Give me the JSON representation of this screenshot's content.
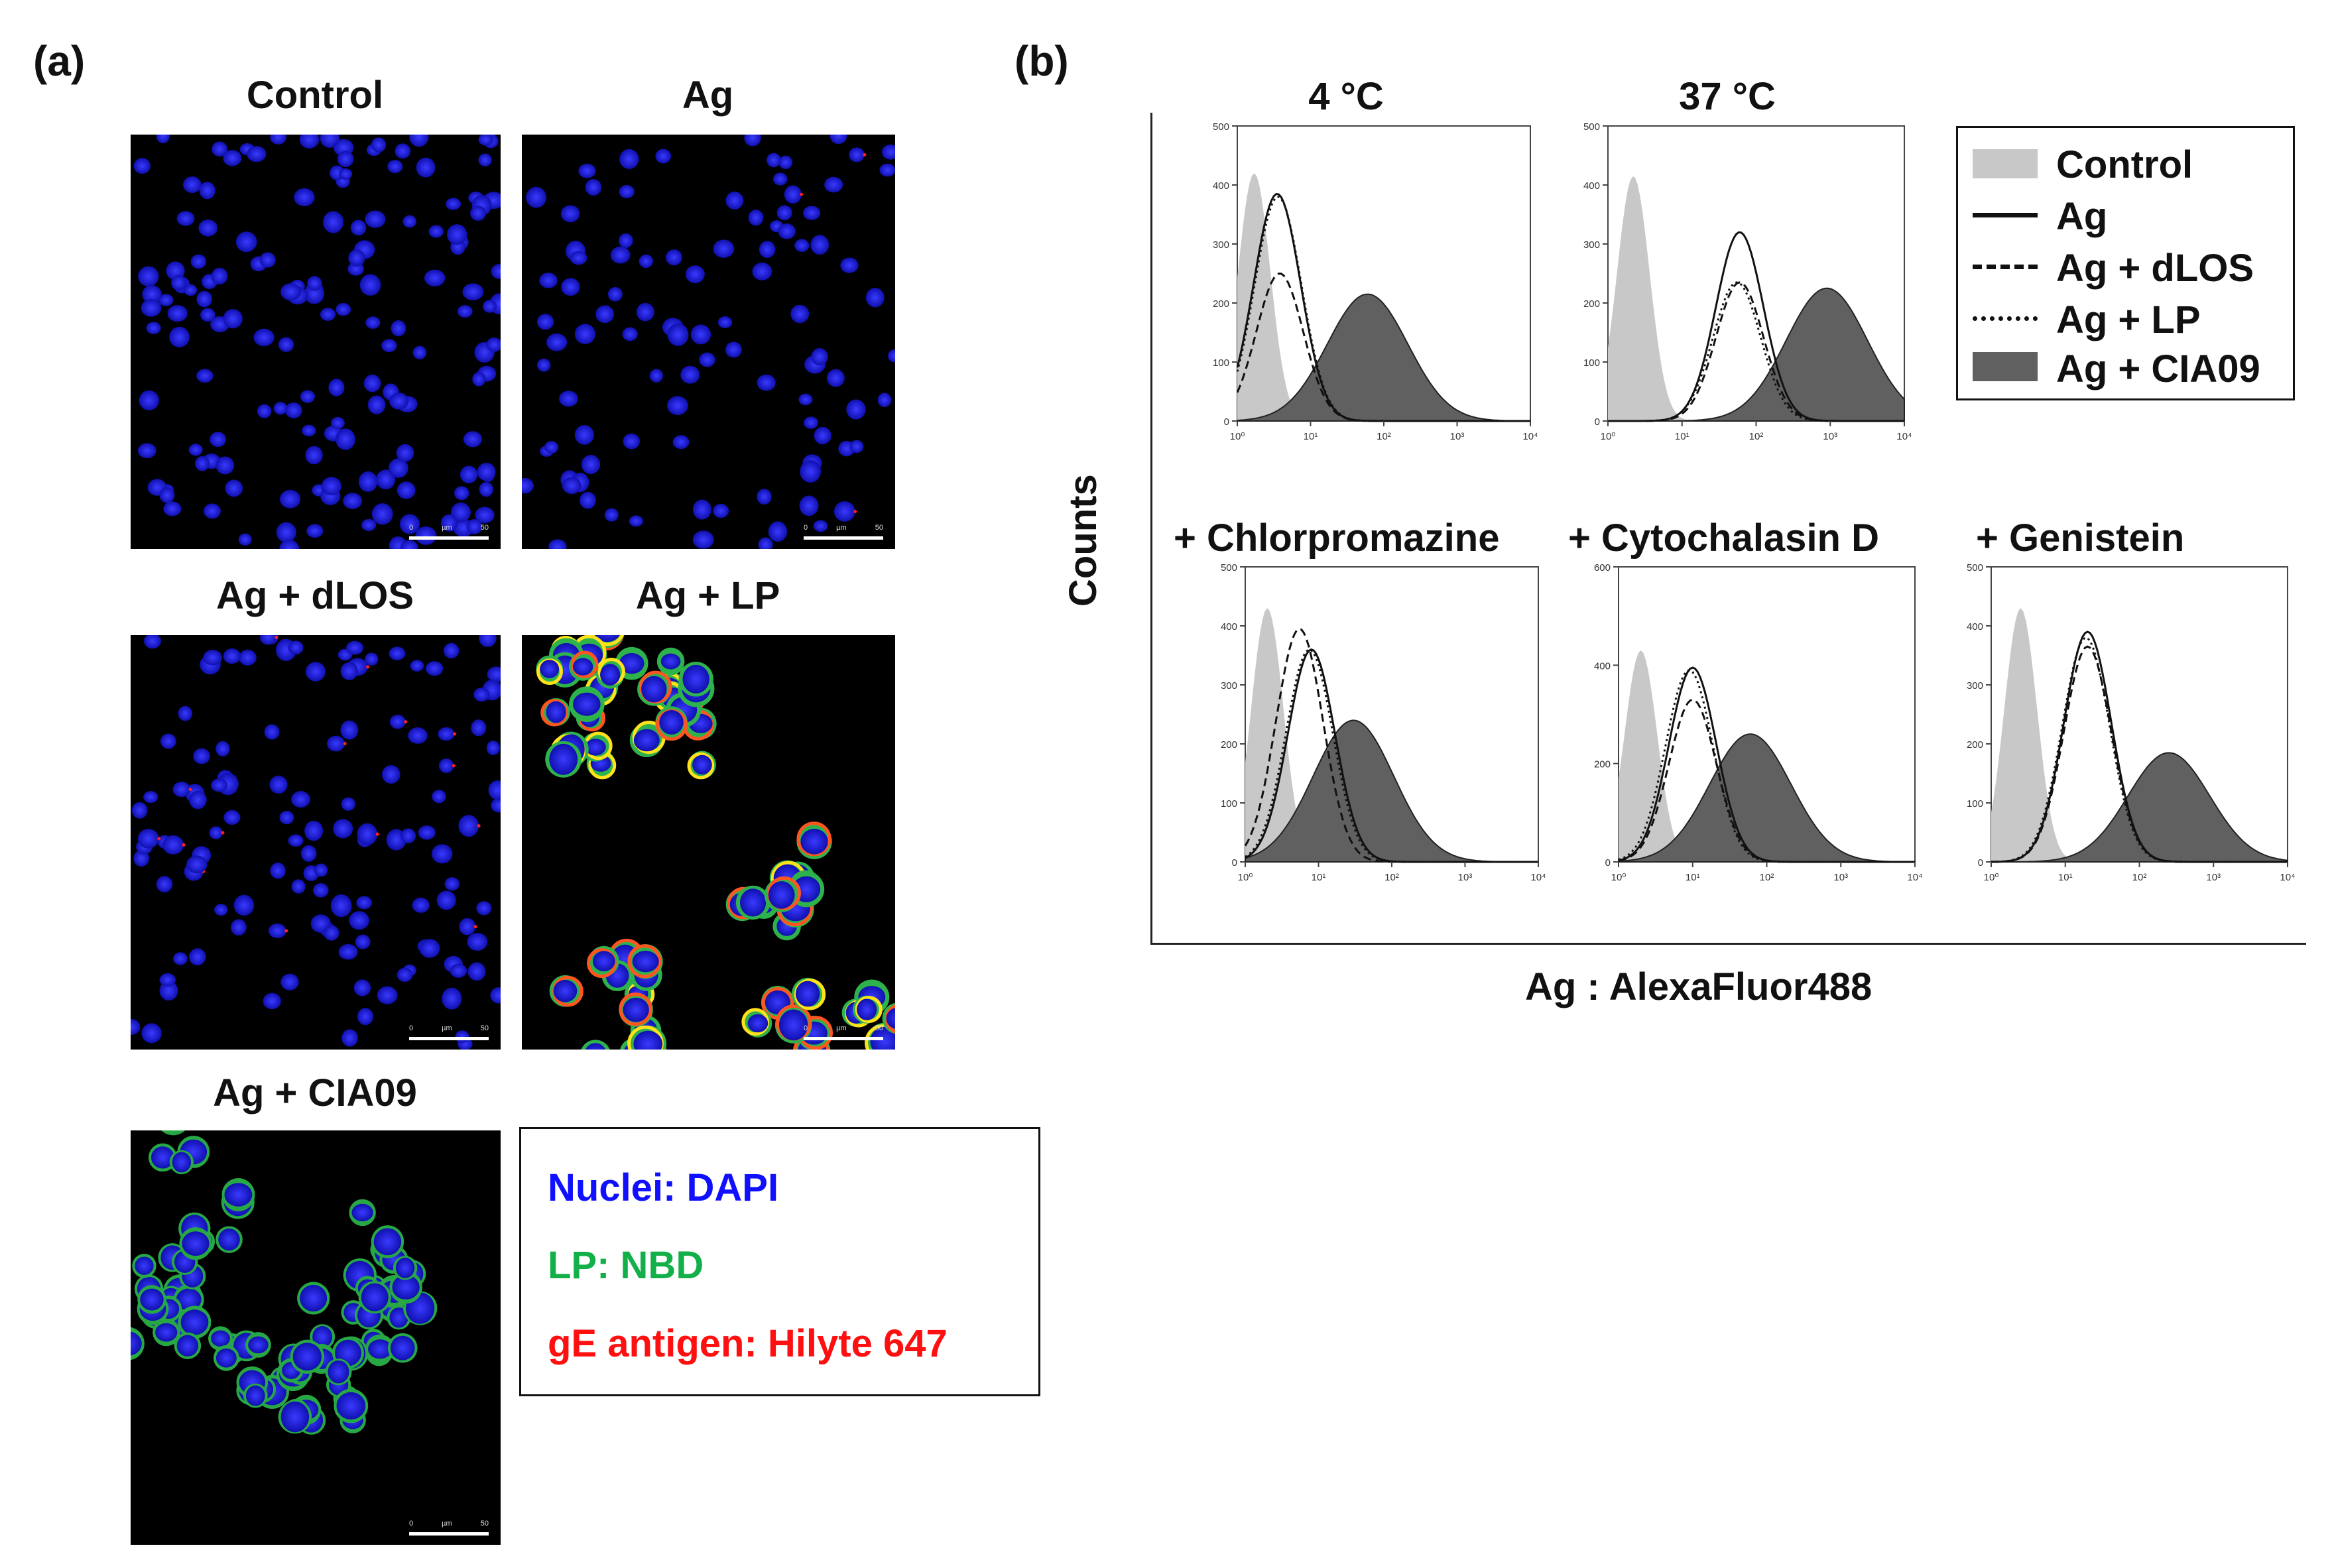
{
  "panel_a": {
    "label": "(a)",
    "panels": [
      {
        "title": "Control",
        "type": "control",
        "scale": [
          "0",
          "µm",
          "50"
        ]
      },
      {
        "title": "Ag",
        "type": "ag",
        "scale": [
          "0",
          "µm",
          "50"
        ]
      },
      {
        "title": "Ag + dLOS",
        "type": "dlos",
        "scale": [
          "0",
          "µm",
          "50"
        ]
      },
      {
        "title": "Ag + LP",
        "type": "lp",
        "scale": [
          "0",
          "µm",
          "50"
        ]
      },
      {
        "title": "Ag + CIA09",
        "type": "cia09",
        "scale": [
          "0",
          "µm",
          "50"
        ]
      }
    ],
    "legend": [
      {
        "text": "Nuclei: DAPI",
        "color": "#1010ff"
      },
      {
        "text": "LP: NBD",
        "color": "#13b04a"
      },
      {
        "text": "gE antigen: Hilyte 647",
        "color": "#ff1010"
      }
    ]
  },
  "panel_b": {
    "label": "(b)",
    "ylabel": "Counts",
    "xlabel": "Ag : AlexaFluor488",
    "legend": [
      {
        "label": "Control",
        "style": "fill-light"
      },
      {
        "label": "Ag",
        "style": "solid"
      },
      {
        "label": "Ag + dLOS",
        "style": "dashed"
      },
      {
        "label": "Ag + LP",
        "style": "dotted"
      },
      {
        "label": "Ag + CIA09",
        "style": "fill-dark"
      }
    ],
    "colors": {
      "control_fill": "#c8c8c8",
      "cia09_fill": "#606060",
      "line": "#111111"
    }
  },
  "chart_data": [
    {
      "type": "area",
      "title": "4 °C",
      "x_scale": "log",
      "xlim": [
        1,
        10000
      ],
      "xticks": [
        "10⁰",
        "10¹",
        "10²",
        "10³",
        "10⁴"
      ],
      "ylim": [
        0,
        500
      ],
      "yticks": [
        0,
        100,
        200,
        300,
        400,
        500
      ],
      "series": [
        {
          "name": "Control",
          "peak_x": 1.7,
          "peak_y": 420
        },
        {
          "name": "Ag",
          "peak_x": 3.5,
          "peak_y": 385
        },
        {
          "name": "Ag + dLOS",
          "peak_x": 3.8,
          "peak_y": 250
        },
        {
          "name": "Ag + LP",
          "peak_x": 3.6,
          "peak_y": 380
        },
        {
          "name": "Ag + CIA09",
          "peak_x": 60,
          "peak_y": 215
        }
      ]
    },
    {
      "type": "area",
      "title": "37 °C",
      "x_scale": "log",
      "xlim": [
        1,
        10000
      ],
      "xticks": [
        "10⁰",
        "10¹",
        "10²",
        "10³",
        "10⁴"
      ],
      "ylim": [
        0,
        500
      ],
      "yticks": [
        0,
        100,
        200,
        300,
        400,
        500
      ],
      "series": [
        {
          "name": "Control",
          "peak_x": 2.2,
          "peak_y": 415
        },
        {
          "name": "Ag",
          "peak_x": 60,
          "peak_y": 320
        },
        {
          "name": "Ag + dLOS",
          "peak_x": 60,
          "peak_y": 235
        },
        {
          "name": "Ag + LP",
          "peak_x": 55,
          "peak_y": 235
        },
        {
          "name": "Ag + CIA09",
          "peak_x": 900,
          "peak_y": 225
        }
      ]
    },
    {
      "type": "area",
      "title": "+ Chlorpromazine",
      "x_scale": "log",
      "xlim": [
        1,
        10000
      ],
      "xticks": [
        "10⁰",
        "10¹",
        "10²",
        "10³",
        "10⁴"
      ],
      "ylim": [
        0,
        500
      ],
      "yticks": [
        0,
        100,
        200,
        300,
        400,
        500
      ],
      "series": [
        {
          "name": "Control",
          "peak_x": 2.0,
          "peak_y": 430
        },
        {
          "name": "Ag",
          "peak_x": 8,
          "peak_y": 360
        },
        {
          "name": "Ag + dLOS",
          "peak_x": 5.5,
          "peak_y": 395
        },
        {
          "name": "Ag + LP",
          "peak_x": 7.5,
          "peak_y": 360
        },
        {
          "name": "Ag + CIA09",
          "peak_x": 30,
          "peak_y": 240
        }
      ]
    },
    {
      "type": "area",
      "title": "+ Cytochalasin D",
      "x_scale": "log",
      "xlim": [
        1,
        10000
      ],
      "xticks": [
        "10⁰",
        "10¹",
        "10²",
        "10³",
        "10⁴"
      ],
      "ylim": [
        0,
        600
      ],
      "yticks": [
        0,
        200,
        400,
        600
      ],
      "series": [
        {
          "name": "Control",
          "peak_x": 2.0,
          "peak_y": 430
        },
        {
          "name": "Ag",
          "peak_x": 10,
          "peak_y": 395
        },
        {
          "name": "Ag + dLOS",
          "peak_x": 10,
          "peak_y": 330
        },
        {
          "name": "Ag + LP",
          "peak_x": 9,
          "peak_y": 390
        },
        {
          "name": "Ag + CIA09",
          "peak_x": 60,
          "peak_y": 260
        }
      ]
    },
    {
      "type": "area",
      "title": "+ Genistein",
      "x_scale": "log",
      "xlim": [
        1,
        10000
      ],
      "xticks": [
        "10⁰",
        "10¹",
        "10²",
        "10³",
        "10⁴"
      ],
      "ylim": [
        0,
        500
      ],
      "yticks": [
        0,
        100,
        200,
        300,
        400,
        500
      ],
      "series": [
        {
          "name": "Control",
          "peak_x": 2.5,
          "peak_y": 430
        },
        {
          "name": "Ag",
          "peak_x": 20,
          "peak_y": 390
        },
        {
          "name": "Ag + dLOS",
          "peak_x": 20,
          "peak_y": 365
        },
        {
          "name": "Ag + LP",
          "peak_x": 19,
          "peak_y": 380
        },
        {
          "name": "Ag + CIA09",
          "peak_x": 250,
          "peak_y": 185
        }
      ]
    }
  ]
}
